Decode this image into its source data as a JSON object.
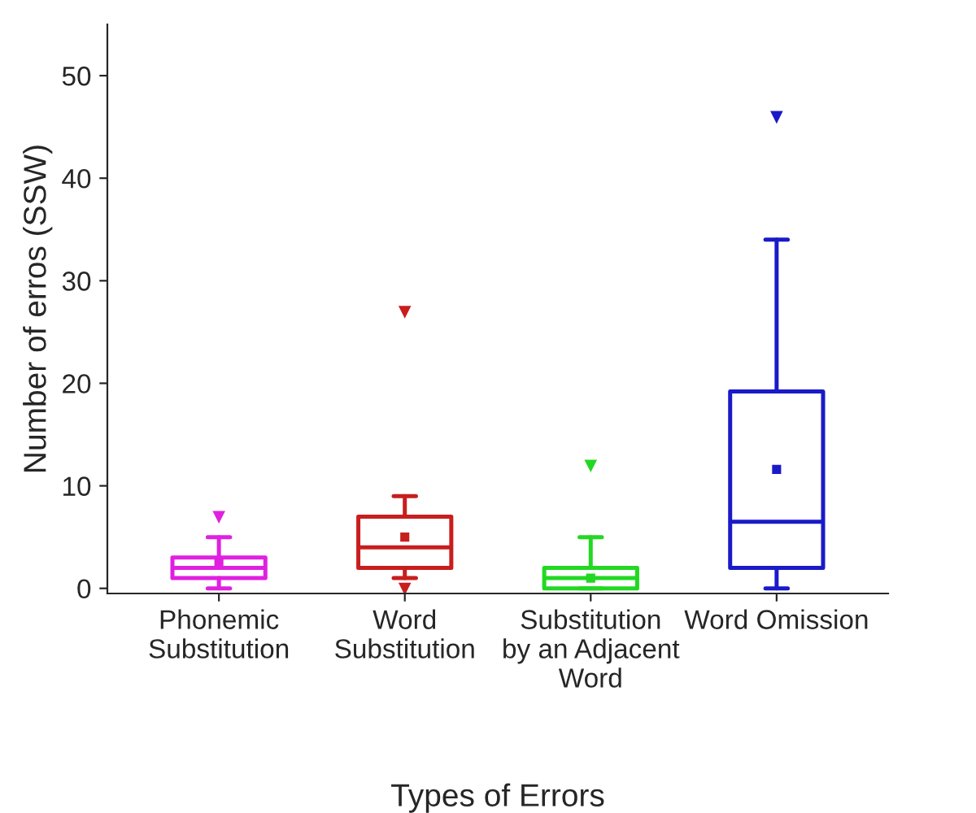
{
  "chart_data": {
    "type": "box",
    "xlabel": "Types of Errors",
    "ylabel": "Number of erros (SSW)",
    "categories": [
      "Phonemic\nSubstitution",
      "Word\nSubstitution",
      "Substitution\nby an Adjacent\nWord",
      "Word Omission"
    ],
    "colors": [
      "#e020e0",
      "#c81e1e",
      "#22d822",
      "#1a1ac8"
    ],
    "boxes": [
      {
        "low": 0,
        "q1": 1,
        "median": 2,
        "q3": 3,
        "high": 5,
        "mean": 2.6,
        "outliers": [
          7
        ]
      },
      {
        "low": 1,
        "q1": 2,
        "median": 4,
        "q3": 7,
        "high": 9,
        "mean": 5,
        "outliers": [
          0,
          27
        ]
      },
      {
        "low": 0,
        "q1": 0,
        "median": 1,
        "q3": 2,
        "high": 5,
        "mean": 1,
        "outliers": [
          12
        ]
      },
      {
        "low": 0,
        "q1": 2,
        "median": 6.5,
        "q3": 19.2,
        "high": 34,
        "mean": 11.6,
        "outliers": [
          46
        ]
      }
    ],
    "ylim": [
      -0.5,
      55
    ],
    "yticks": [
      0,
      10,
      20,
      30,
      40,
      50
    ],
    "grid": false
  }
}
